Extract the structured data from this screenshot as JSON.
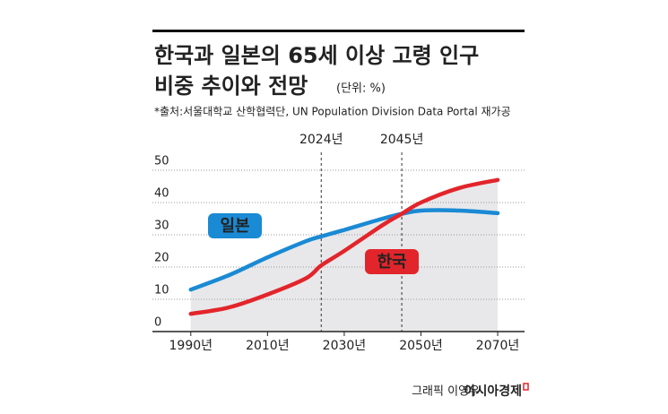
{
  "chart_data": {
    "type": "line",
    "title": [
      "한국과 일본의 65세 이상 고령 인구",
      "비중 추이와 전망"
    ],
    "unit": "(단위: %)",
    "source": "*출처:서울대학교 산학협력단, UN Population Division Data Portal 재가공",
    "x": [
      1990,
      2000,
      2010,
      2020,
      2024,
      2030,
      2040,
      2045,
      2050,
      2060,
      2070
    ],
    "series": [
      {
        "name": "일본",
        "color": "#1a8ad4",
        "values": [
          13,
          17.5,
          23,
          28,
          29.5,
          31.5,
          35,
          36.5,
          37.5,
          37.5,
          36.7
        ]
      },
      {
        "name": "한국",
        "color": "#e2252b",
        "values": [
          5.5,
          7.5,
          11.5,
          16.5,
          20.5,
          25,
          33,
          36.5,
          40,
          44.5,
          47
        ]
      }
    ],
    "xlim": [
      1980,
      2077
    ],
    "ylim": [
      0,
      50
    ],
    "xticks": [
      {
        "value": 1990,
        "label": "1990년"
      },
      {
        "value": 2010,
        "label": "2010년"
      },
      {
        "value": 2030,
        "label": "2030년"
      },
      {
        "value": 2050,
        "label": "2050년"
      },
      {
        "value": 2070,
        "label": "2070년"
      }
    ],
    "yticks": [
      0,
      10,
      20,
      30,
      40,
      50
    ],
    "vlines": [
      {
        "value": 2024,
        "label": "2024년"
      },
      {
        "value": 2045,
        "label": "2045년"
      }
    ],
    "grid": true,
    "credit": "그래픽 이영우",
    "publisher": "아시아경제"
  }
}
